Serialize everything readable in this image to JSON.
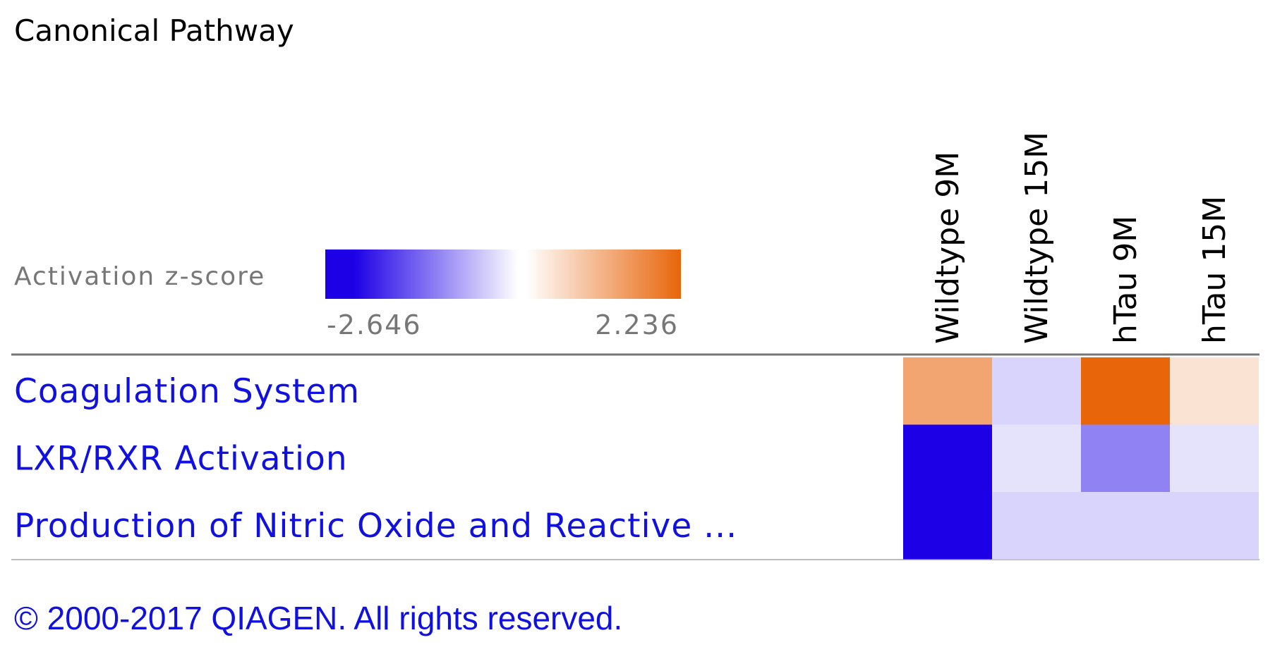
{
  "chart_data": {
    "type": "heatmap",
    "title": "Canonical Pathway",
    "colorbar": {
      "label": "Activation z-score",
      "min": -2.646,
      "max": 2.236,
      "low_color": "#1e00e6",
      "mid_color": "#ffffff",
      "high_color": "#e8650a"
    },
    "columns": [
      "Wildtype 9M",
      "Wildtype 15M",
      "hTau 9M",
      "hTau 15M"
    ],
    "rows": [
      "Coagulation System",
      "LXR/RXR Activation",
      "Production of Nitric Oxide and Reactive ..."
    ],
    "values": [
      [
        1.3,
        -0.45,
        2.236,
        0.4
      ],
      [
        -2.646,
        -0.3,
        -1.3,
        -0.3
      ],
      [
        -2.646,
        -0.45,
        -0.45,
        -0.45
      ]
    ],
    "footer": "© 2000-2017 QIAGEN. All rights reserved."
  }
}
